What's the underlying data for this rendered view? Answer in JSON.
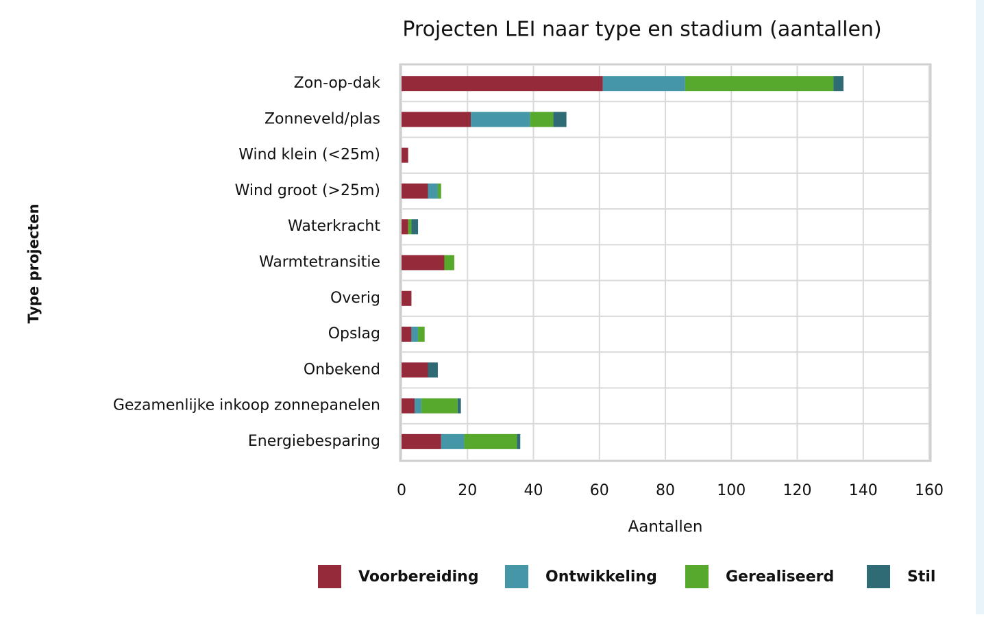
{
  "chart_data": {
    "type": "stacked_barh",
    "title": "Projecten LEI naar type en stadium (aantallen)",
    "xlabel": "Aantallen",
    "ylabel": "Type projecten",
    "categories": [
      "Zon-op-dak",
      "Zonneveld/plas",
      "Wind klein (<25m)",
      "Wind groot (>25m)",
      "Waterkracht",
      "Warmtetransitie",
      "Overig",
      "Opslag",
      "Onbekend",
      "Gezamenlijke inkoop zonnepanelen",
      "Energiebesparing"
    ],
    "series": [
      {
        "name": "Voorbereiding",
        "color": "#952a3a",
        "values": [
          61,
          21,
          2,
          8,
          2,
          13,
          3,
          3,
          8,
          4,
          12
        ]
      },
      {
        "name": "Ontwikkeling",
        "color": "#4597a8",
        "values": [
          25,
          18,
          0,
          3,
          0,
          0,
          0,
          2,
          0,
          2,
          7
        ]
      },
      {
        "name": "Gerealiseerd",
        "color": "#56a92c",
        "values": [
          45,
          7,
          0,
          1,
          1,
          3,
          0,
          2,
          0,
          11,
          16
        ]
      },
      {
        "name": "Stil",
        "color": "#2f6b74",
        "values": [
          3,
          4,
          0,
          0,
          2,
          0,
          0,
          0,
          3,
          1,
          1
        ]
      }
    ],
    "xlim": [
      0,
      160
    ],
    "xticks": [
      0,
      20,
      40,
      60,
      80,
      100,
      120,
      140,
      160
    ],
    "grid": true,
    "legend": "bottom"
  }
}
